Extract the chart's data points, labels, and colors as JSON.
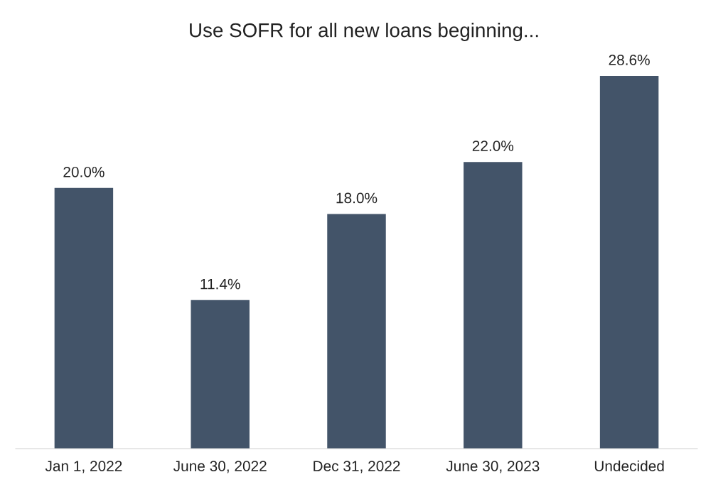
{
  "chart_data": {
    "type": "bar",
    "title": "Use SOFR for all new loans beginning...",
    "categories": [
      "Jan 1, 2022",
      "June 30, 2022",
      "Dec 31, 2022",
      "June 30, 2023",
      "Undecided"
    ],
    "values": [
      20.0,
      11.4,
      18.0,
      22.0,
      28.6
    ],
    "value_labels": [
      "20.0%",
      "11.4%",
      "18.0%",
      "22.0%",
      "28.6%"
    ],
    "color": "#435469",
    "grid": false,
    "legend": false
  }
}
